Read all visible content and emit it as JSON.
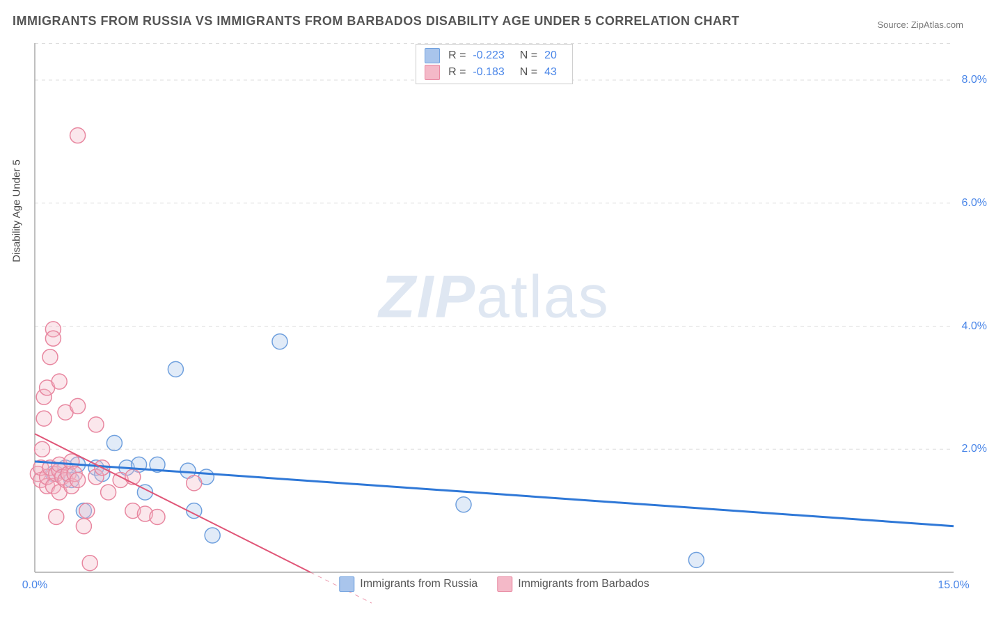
{
  "title": "IMMIGRANTS FROM RUSSIA VS IMMIGRANTS FROM BARBADOS DISABILITY AGE UNDER 5 CORRELATION CHART",
  "source_label": "Source: ",
  "source_name": "ZipAtlas.com",
  "ylabel": "Disability Age Under 5",
  "watermark_a": "ZIP",
  "watermark_b": "atlas",
  "chart": {
    "type": "scatter",
    "background_color": "#ffffff",
    "grid_color": "#dddddd",
    "axis_color": "#aaaaaa",
    "tick_label_color": "#4a86e8",
    "xlim": [
      0,
      15
    ],
    "ylim": [
      0,
      8.6
    ],
    "x_ticks": [
      0.0,
      15.0
    ],
    "x_tick_labels": [
      "0.0%",
      "15.0%"
    ],
    "y_ticks": [
      2.0,
      4.0,
      6.0,
      8.0
    ],
    "y_tick_labels": [
      "2.0%",
      "4.0%",
      "6.0%",
      "8.0%"
    ],
    "marker_radius": 11,
    "marker_fill_opacity": 0.35,
    "series": [
      {
        "name": "Immigrants from Russia",
        "fill_color": "#a9c5ec",
        "stroke_color": "#6fa0de",
        "R": "-0.223",
        "N": "20",
        "trend": {
          "x1": 0.0,
          "y1": 1.8,
          "x2": 15.0,
          "y2": 0.75,
          "color": "#2f78d7",
          "width": 3,
          "dash": ""
        },
        "points": [
          [
            0.3,
            1.6
          ],
          [
            0.5,
            1.7
          ],
          [
            0.6,
            1.5
          ],
          [
            0.7,
            1.75
          ],
          [
            0.8,
            1.0
          ],
          [
            1.0,
            1.7
          ],
          [
            1.3,
            2.1
          ],
          [
            1.5,
            1.7
          ],
          [
            1.7,
            1.75
          ],
          [
            1.8,
            1.3
          ],
          [
            2.0,
            1.75
          ],
          [
            2.3,
            3.3
          ],
          [
            2.5,
            1.65
          ],
          [
            2.6,
            1.0
          ],
          [
            2.8,
            1.55
          ],
          [
            2.9,
            0.6
          ],
          [
            4.0,
            3.75
          ],
          [
            7.0,
            1.1
          ],
          [
            10.8,
            0.2
          ],
          [
            1.1,
            1.6
          ]
        ]
      },
      {
        "name": "Immigrants from Barbados",
        "fill_color": "#f4b9c8",
        "stroke_color": "#e887a0",
        "R": "-0.183",
        "N": "43",
        "trend": {
          "x1": 0.0,
          "y1": 2.25,
          "x2": 4.5,
          "y2": 0.0,
          "color": "#e05577",
          "width": 2,
          "extend_to_x": 4.5,
          "dash_after": true
        },
        "points": [
          [
            0.05,
            1.6
          ],
          [
            0.1,
            1.5
          ],
          [
            0.1,
            1.7
          ],
          [
            0.12,
            2.0
          ],
          [
            0.15,
            2.85
          ],
          [
            0.15,
            2.5
          ],
          [
            0.2,
            3.0
          ],
          [
            0.2,
            1.4
          ],
          [
            0.2,
            1.55
          ],
          [
            0.25,
            1.7
          ],
          [
            0.25,
            3.5
          ],
          [
            0.3,
            3.95
          ],
          [
            0.3,
            3.8
          ],
          [
            0.3,
            1.4
          ],
          [
            0.35,
            1.6
          ],
          [
            0.35,
            0.9
          ],
          [
            0.4,
            1.65
          ],
          [
            0.4,
            1.75
          ],
          [
            0.4,
            1.3
          ],
          [
            0.4,
            3.1
          ],
          [
            0.45,
            1.55
          ],
          [
            0.5,
            2.6
          ],
          [
            0.5,
            1.5
          ],
          [
            0.55,
            1.6
          ],
          [
            0.6,
            1.8
          ],
          [
            0.6,
            1.4
          ],
          [
            0.65,
            1.6
          ],
          [
            0.7,
            1.5
          ],
          [
            0.7,
            2.7
          ],
          [
            0.7,
            7.1
          ],
          [
            0.8,
            0.75
          ],
          [
            0.85,
            1.0
          ],
          [
            0.9,
            0.15
          ],
          [
            1.0,
            1.55
          ],
          [
            1.0,
            2.4
          ],
          [
            1.1,
            1.7
          ],
          [
            1.2,
            1.3
          ],
          [
            1.4,
            1.5
          ],
          [
            1.6,
            1.55
          ],
          [
            1.6,
            1.0
          ],
          [
            1.8,
            0.95
          ],
          [
            2.0,
            0.9
          ],
          [
            2.6,
            1.45
          ]
        ]
      }
    ]
  },
  "bottom_legend": [
    {
      "label": "Immigrants from Russia",
      "fill": "#a9c5ec",
      "stroke": "#6fa0de"
    },
    {
      "label": "Immigrants from Barbados",
      "fill": "#f4b9c8",
      "stroke": "#e887a0"
    }
  ]
}
